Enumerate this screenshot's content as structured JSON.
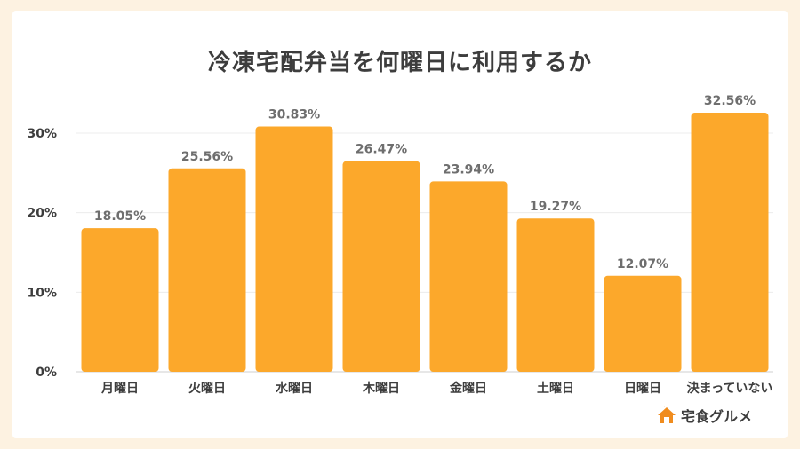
{
  "chart_data": {
    "type": "bar",
    "title": "冷凍宅配弁当を何曜日に利用するか",
    "categories": [
      "月曜日",
      "火曜日",
      "水曜日",
      "木曜日",
      "金曜日",
      "土曜日",
      "日曜日",
      "決まっていない"
    ],
    "values": [
      18.05,
      25.56,
      30.83,
      26.47,
      23.94,
      19.27,
      12.07,
      32.56
    ],
    "value_labels": [
      "18.05%",
      "25.56%",
      "30.83%",
      "26.47%",
      "23.94%",
      "19.27%",
      "12.07%",
      "32.56%"
    ],
    "yticks": [
      0,
      10,
      20,
      30
    ],
    "ytick_labels": [
      "0%",
      "10%",
      "20%",
      "30%"
    ],
    "ylim": [
      0,
      30
    ],
    "grid": true,
    "bar_color": "#fca82b"
  },
  "brand": {
    "name": "宅食グルメ",
    "icon": "house-icon",
    "accent": "#f08c1e"
  }
}
